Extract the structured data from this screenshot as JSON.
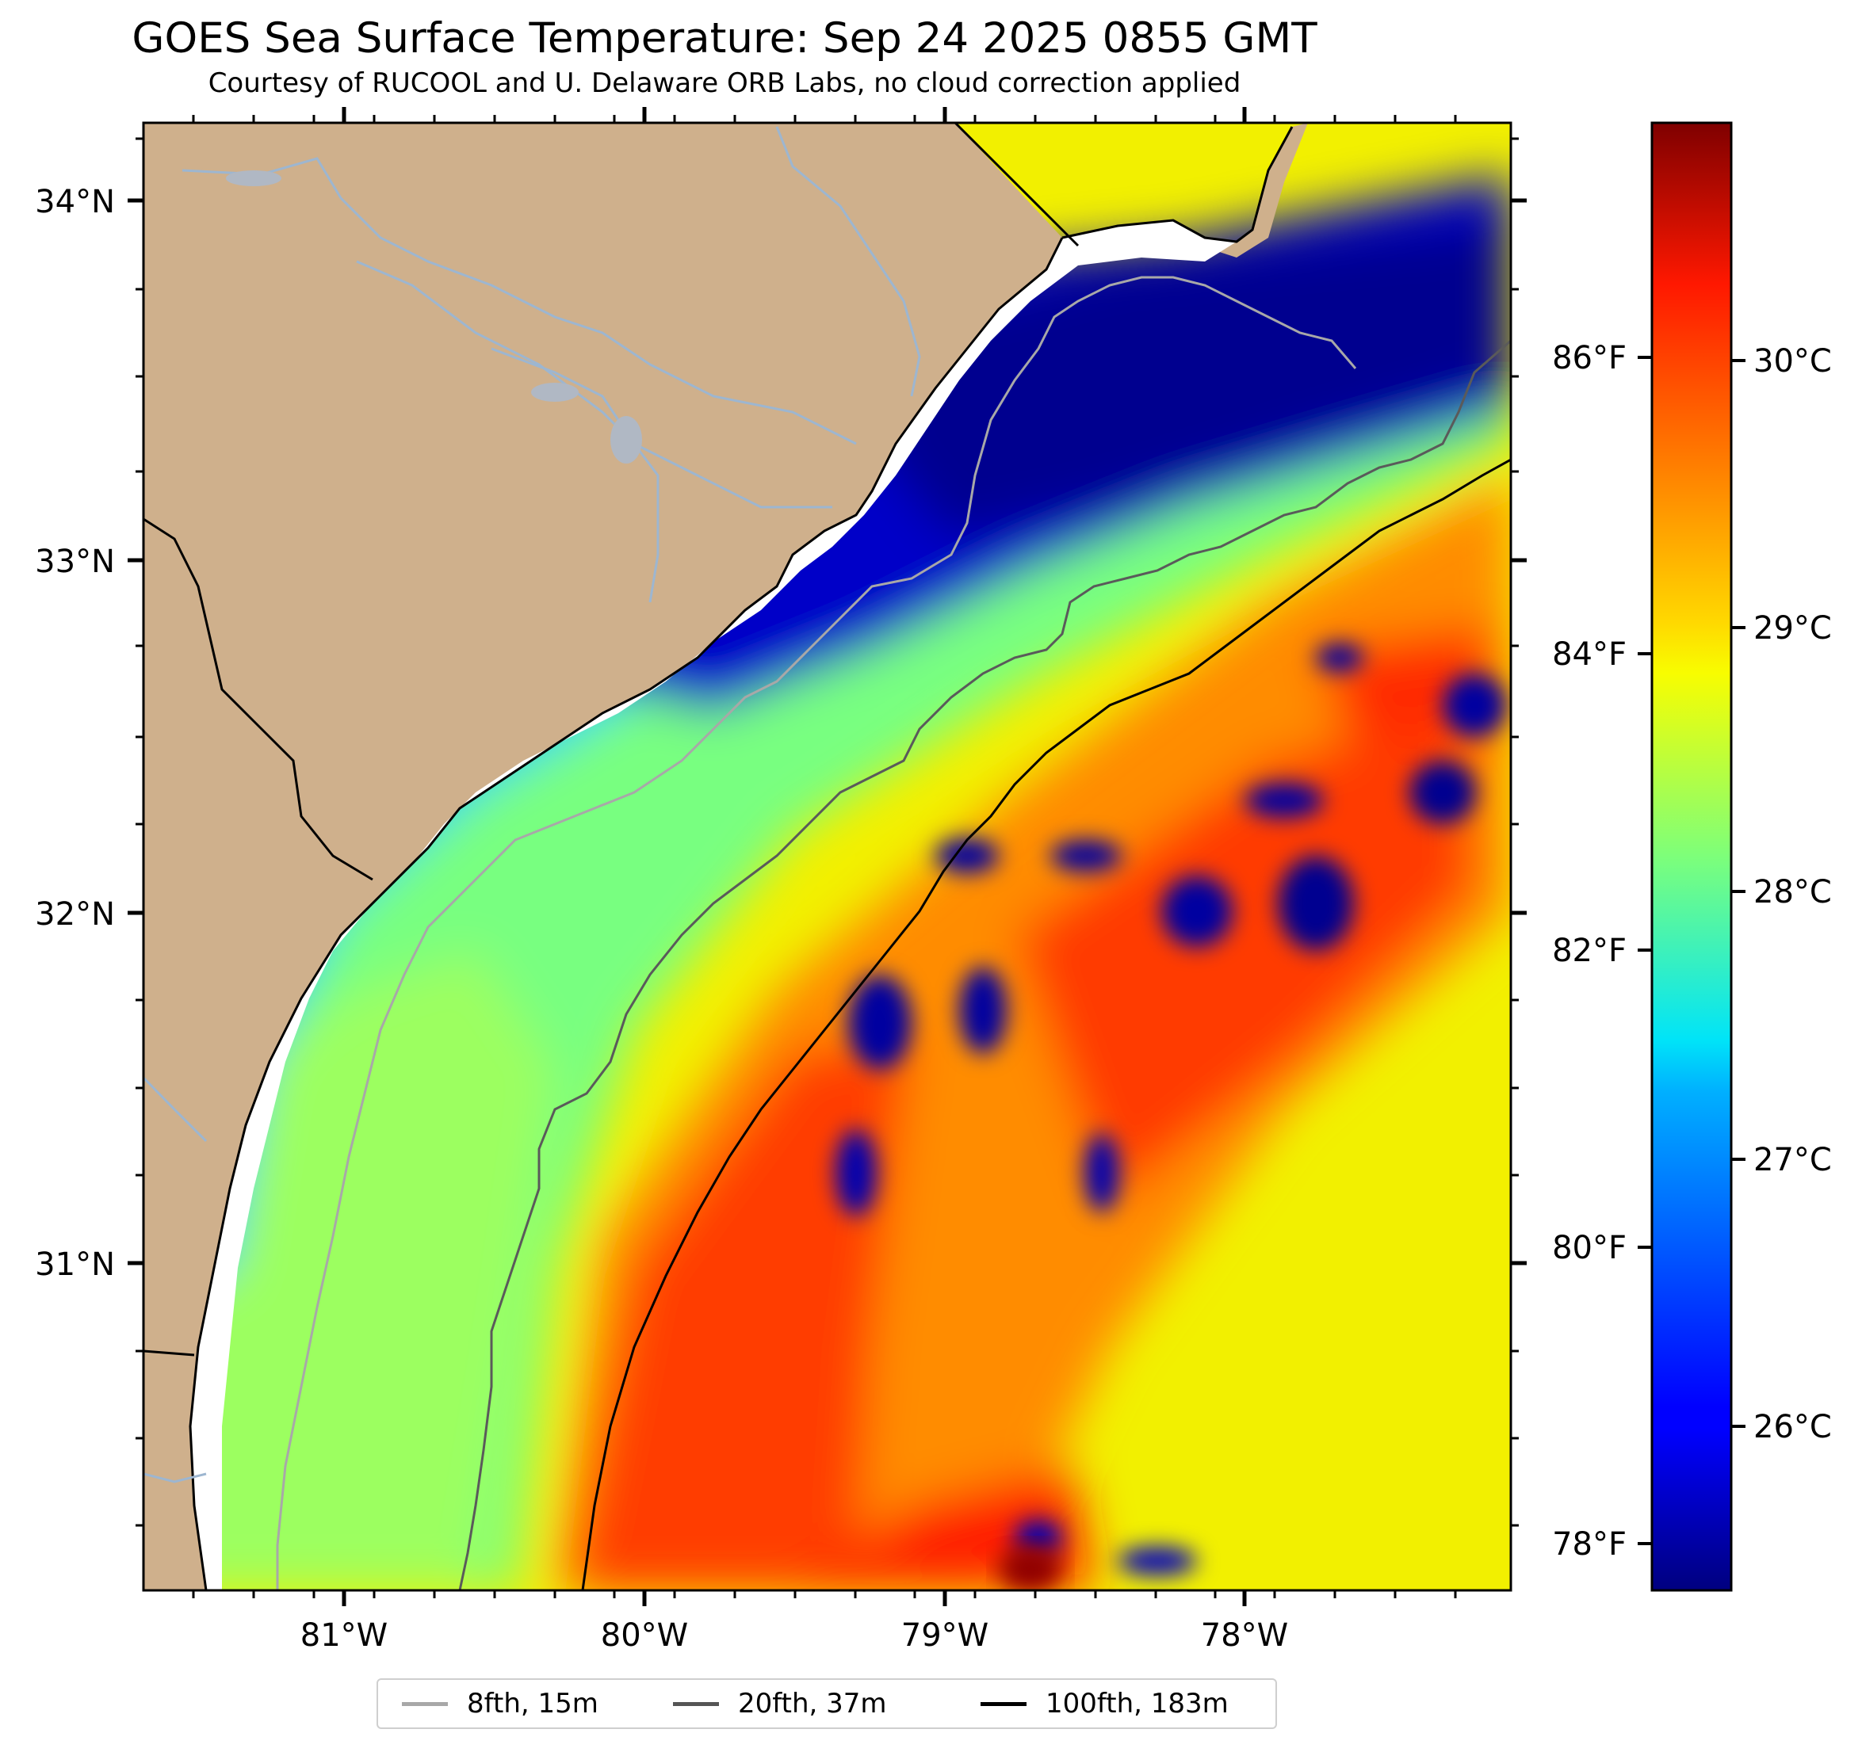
{
  "title": "GOES Sea Surface Temperature: Sep 24 2025 0855 GMT",
  "subtitle": "Courtesy of RUCOOL and U. Delaware ORB Labs, no cloud correction applied",
  "map": {
    "lat_labels": [
      "34°N",
      "33°N",
      "32°N",
      "31°N"
    ],
    "lon_labels": [
      "81°W",
      "80°W",
      "79°W",
      "78°W"
    ],
    "colors": {
      "land": "#cfb08c",
      "coastline": "#000000",
      "rivers": "#9db6d0",
      "isobath_8fth": "#a8a8a8",
      "isobath_20fth": "#5a5a5a",
      "isobath_100fth": "#000000"
    }
  },
  "colorbar": {
    "celsius_labels": [
      "30°C",
      "29°C",
      "28°C",
      "27°C",
      "26°C"
    ],
    "fahrenheit_labels": [
      "86°F",
      "84°F",
      "82°F",
      "80°F",
      "78°F"
    ],
    "colormap": "jet",
    "range_c": [
      25.4,
      30.9
    ]
  },
  "legend": {
    "items": [
      {
        "label": "8fth, 15m",
        "color": "#a8a8a8"
      },
      {
        "label": "20fth, 37m",
        "color": "#555555"
      },
      {
        "label": "100fth, 183m",
        "color": "#000000"
      }
    ]
  }
}
